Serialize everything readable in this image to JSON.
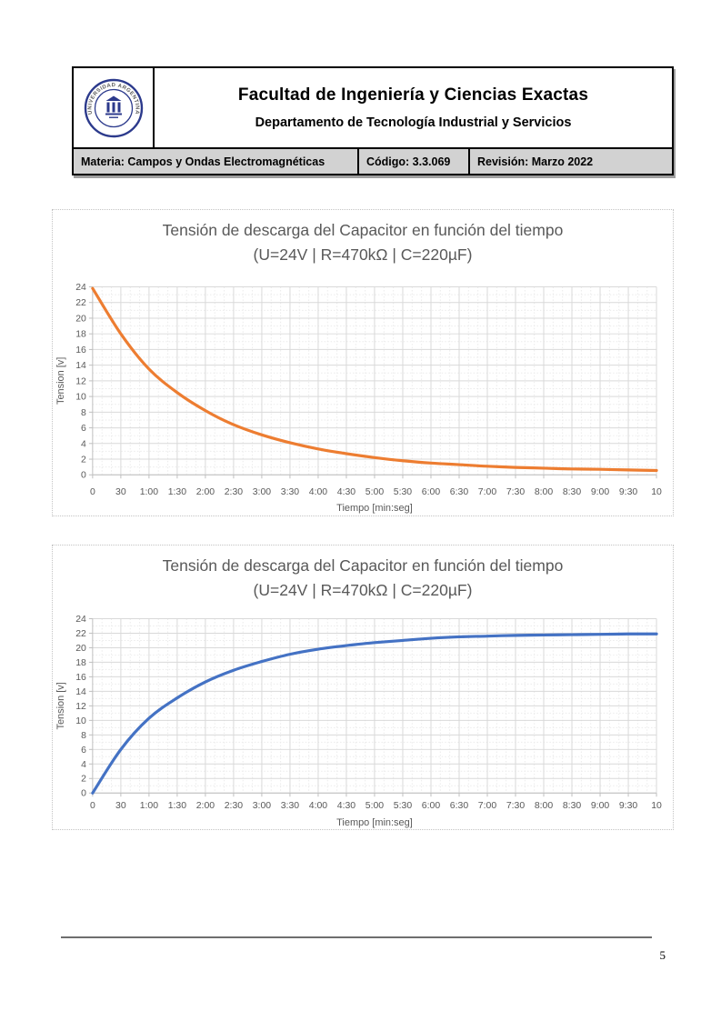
{
  "header": {
    "logo": {
      "name": "uade-university-seal",
      "ring_text": "UNIVERSIDAD ARGENTINA DE LA EMPRESA"
    },
    "title": "Facultad de Ingeniería y Ciencias Exactas",
    "subtitle": "Departamento de Tecnología Industrial y Servicios",
    "materia": "Materia: Campos y Ondas Electromagnéticas",
    "codigo": "Código: 3.3.069",
    "revision": "Revisión: Marzo 2022",
    "band_bg_color": "#d2d2d2"
  },
  "chart_data": [
    {
      "type": "line",
      "title": "Tensión de descarga del Capacitor en función del tiempo",
      "subtitle": "(U=24V | R=470kΩ | C=220µF)",
      "xlabel": "Tiempo [min:seg]",
      "ylabel": "Tension [v]",
      "categories": [
        "0",
        "30",
        "1:00",
        "1:30",
        "2:00",
        "2:30",
        "3:00",
        "3:30",
        "4:00",
        "4:30",
        "5:00",
        "5:30",
        "6:00",
        "6:30",
        "7:00",
        "7:30",
        "8:00",
        "8:30",
        "9:00",
        "9:30",
        "10"
      ],
      "values": [
        23.8,
        18.0,
        13.5,
        10.5,
        8.2,
        6.4,
        5.1,
        4.1,
        3.3,
        2.7,
        2.2,
        1.8,
        1.5,
        1.3,
        1.1,
        0.95,
        0.85,
        0.75,
        0.7,
        0.62,
        0.55
      ],
      "ylim": [
        0,
        24
      ],
      "ytick_step": 2,
      "line_color": "#ED7D31",
      "grid": {
        "major": true,
        "minor": true
      },
      "legend": "none"
    },
    {
      "type": "line",
      "title": "Tensión de descarga del Capacitor en función del tiempo",
      "subtitle": "(U=24V | R=470kΩ | C=220µF)",
      "xlabel": "Tiempo [min:seg]",
      "ylabel": "Tension [v]",
      "categories": [
        "0",
        "30",
        "1:00",
        "1:30",
        "2:00",
        "2:30",
        "3:00",
        "3:30",
        "4:00",
        "4:30",
        "5:00",
        "5:30",
        "6:00",
        "6:30",
        "7:00",
        "7:30",
        "8:00",
        "8:30",
        "9:00",
        "9:30",
        "10"
      ],
      "values": [
        0,
        6.0,
        10.3,
        13.1,
        15.3,
        16.9,
        18.1,
        19.1,
        19.8,
        20.3,
        20.7,
        21.0,
        21.3,
        21.5,
        21.6,
        21.7,
        21.75,
        21.8,
        21.85,
        21.9,
        21.9
      ],
      "ylim": [
        0,
        24
      ],
      "ytick_step": 2,
      "line_color": "#4472C4",
      "grid": {
        "major": true,
        "minor": true
      },
      "legend": "none"
    }
  ],
  "footer": {
    "page_number": "5"
  },
  "chart_style": {
    "title_color": "#595959",
    "major_grid_color": "#d9d9d9",
    "minor_grid_color": "#ebebeb",
    "axis_color": "#bfbfbf"
  }
}
